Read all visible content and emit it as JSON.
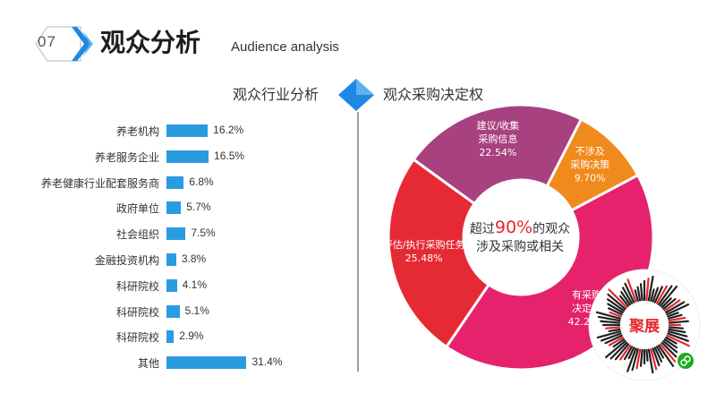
{
  "header": {
    "number": "07",
    "title": "观众分析",
    "subtitle": "Audience analysis"
  },
  "left_section_title": "观众行业分析",
  "right_section_title": "观众采购决定权",
  "donut_center": {
    "prefix": "超过",
    "highlight": "90%",
    "suffix": "的观众",
    "line2": "涉及采购或相关"
  },
  "qr": {
    "logo_text": "聚展"
  },
  "colors": {
    "bar": "#2b9be0",
    "highlight": "#e8262f",
    "accent_blue": "#1e88e5"
  },
  "chart_data": [
    {
      "type": "bar",
      "orientation": "horizontal",
      "categories": [
        "养老机构",
        "养老服务企业",
        "养老健康行业配套服务商",
        "政府单位",
        "社会组织",
        "金融投资机构",
        "科研院校",
        "科研院校",
        "科研院校",
        "其他"
      ],
      "values": [
        16.2,
        16.5,
        6.8,
        5.7,
        7.5,
        3.8,
        4.1,
        5.1,
        2.9,
        31.4
      ],
      "value_labels": [
        "16.2%",
        "16.5%",
        "6.8%",
        "5.7%",
        "7.5%",
        "3.8%",
        "4.1%",
        "5.1%",
        "2.9%",
        "31.4%"
      ]
    },
    {
      "type": "pie",
      "donut": true,
      "slices": [
        {
          "label": [
            "有采购",
            "决定权"
          ],
          "value": 42.28,
          "value_label": "42.28%",
          "color": "#e5226b"
        },
        {
          "label": [
            "评估/执行采购任务"
          ],
          "value": 25.48,
          "value_label": "25.48%",
          "color": "#e52a33"
        },
        {
          "label": [
            "建议/收集",
            "采购信息"
          ],
          "value": 22.54,
          "value_label": "22.54%",
          "color": "#a8417f"
        },
        {
          "label": [
            "不涉及",
            "采购决策"
          ],
          "value": 9.7,
          "value_label": "9.70%",
          "color": "#f08a1c"
        }
      ]
    }
  ]
}
